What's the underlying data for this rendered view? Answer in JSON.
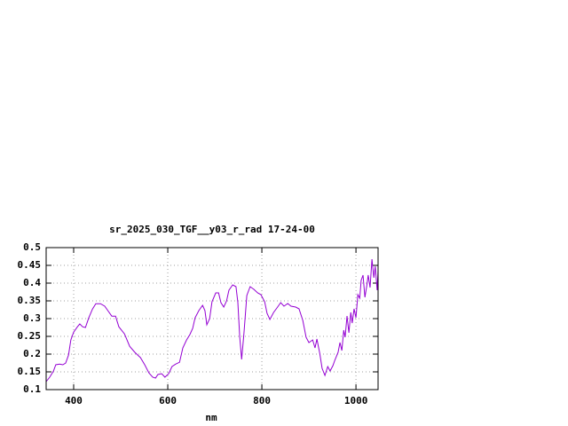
{
  "chart_data": {
    "type": "line",
    "title": "sr_2025_030_TGF__y03_r_rad 17-24-00",
    "x_label": "nm",
    "xlim": [
      341.5,
      1047
    ],
    "ylim": [
      0.1,
      0.5
    ],
    "xticks": [
      400,
      600,
      800,
      1000
    ],
    "yticks": [
      0.1,
      0.15,
      0.2,
      0.25,
      0.3,
      0.35,
      0.4,
      0.45,
      0.5
    ],
    "grid": true,
    "x": [
      341.5,
      349,
      357,
      362,
      370,
      377,
      383,
      389,
      394,
      400,
      408,
      413,
      419,
      425,
      432,
      440,
      447,
      457,
      466,
      474,
      481,
      489,
      496,
      508,
      519,
      530,
      542,
      551,
      560,
      568,
      574,
      579,
      587,
      594,
      602,
      609,
      617,
      625,
      632,
      640,
      647,
      653,
      658,
      666,
      674,
      679,
      683,
      689,
      694,
      702,
      708,
      713,
      719,
      725,
      730,
      738,
      745,
      749,
      753,
      757,
      762,
      768,
      775,
      783,
      791,
      798,
      806,
      811,
      817,
      825,
      832,
      840,
      847,
      855,
      862,
      872,
      879,
      887,
      894,
      900,
      908,
      913,
      917,
      923,
      928,
      934,
      940,
      945,
      951,
      955,
      962,
      966,
      970,
      974,
      977,
      981,
      985,
      989,
      992,
      996,
      1000,
      1004,
      1008,
      1011,
      1015,
      1019,
      1023,
      1026,
      1030,
      1034,
      1038,
      1041,
      1045,
      1047
    ],
    "series": [
      {
        "color": "#9400d3",
        "values": [
          0.1225,
          0.135,
          0.152,
          0.17,
          0.172,
          0.17,
          0.175,
          0.197,
          0.24,
          0.262,
          0.277,
          0.285,
          0.277,
          0.275,
          0.302,
          0.327,
          0.342,
          0.342,
          0.335,
          0.32,
          0.307,
          0.307,
          0.277,
          0.257,
          0.222,
          0.205,
          0.19,
          0.17,
          0.147,
          0.135,
          0.1325,
          0.1425,
          0.145,
          0.135,
          0.145,
          0.165,
          0.172,
          0.177,
          0.2175,
          0.24,
          0.255,
          0.2725,
          0.302,
          0.3225,
          0.3375,
          0.3225,
          0.2825,
          0.3,
          0.3475,
          0.3725,
          0.3725,
          0.345,
          0.3325,
          0.35,
          0.38,
          0.395,
          0.39,
          0.345,
          0.2475,
          0.185,
          0.26,
          0.365,
          0.39,
          0.3825,
          0.3725,
          0.3675,
          0.3475,
          0.315,
          0.2975,
          0.3175,
          0.33,
          0.345,
          0.335,
          0.3425,
          0.335,
          0.3325,
          0.3275,
          0.295,
          0.2475,
          0.2325,
          0.24,
          0.2175,
          0.2425,
          0.2025,
          0.16,
          0.14,
          0.165,
          0.1525,
          0.1675,
          0.1825,
          0.205,
          0.2325,
          0.21,
          0.2675,
          0.2475,
          0.3075,
          0.26,
          0.3175,
          0.2875,
          0.3275,
          0.3025,
          0.3675,
          0.3575,
          0.4075,
          0.4225,
          0.36,
          0.3925,
          0.4225,
          0.3875,
          0.4675,
          0.415,
          0.4475,
          0.38,
          0.435
        ]
      }
    ]
  }
}
